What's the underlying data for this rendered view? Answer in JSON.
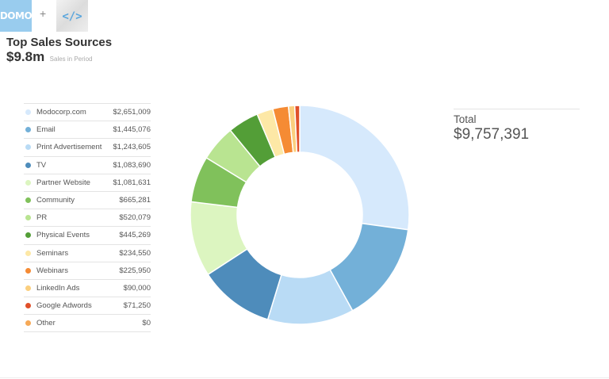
{
  "header": {
    "brand_logo_text": "DOMO",
    "plus": "+",
    "code_logo_text": "</>",
    "title": "Top Sales Sources",
    "summary_value": "$9.8m",
    "summary_label": "Sales in Period"
  },
  "total": {
    "label": "Total",
    "value": "$9,757,391"
  },
  "chart_data": {
    "type": "pie",
    "variant": "donut",
    "title": "Top Sales Sources",
    "total": 9757391,
    "legend_position": "left",
    "series": [
      {
        "name": "Modocorp.com",
        "value": 2651009,
        "display": "$2,651,009",
        "color": "#d6e9fc"
      },
      {
        "name": "Email",
        "value": 1445076,
        "display": "$1,445,076",
        "color": "#73b0d8"
      },
      {
        "name": "Print Advertisement",
        "value": 1243605,
        "display": "$1,243,605",
        "color": "#b9dbf5"
      },
      {
        "name": "TV",
        "value": 1083690,
        "display": "$1,083,690",
        "color": "#4e8cbb"
      },
      {
        "name": "Partner Website",
        "value": 1081631,
        "display": "$1,081,631",
        "color": "#dcf5c0"
      },
      {
        "name": "Community",
        "value": 665281,
        "display": "$665,281",
        "color": "#80c15b"
      },
      {
        "name": "PR",
        "value": 520079,
        "display": "$520,079",
        "color": "#b9e491"
      },
      {
        "name": "Physical Events",
        "value": 445269,
        "display": "$445,269",
        "color": "#539e37"
      },
      {
        "name": "Seminars",
        "value": 234550,
        "display": "$234,550",
        "color": "#fde8a6"
      },
      {
        "name": "Webinars",
        "value": 225950,
        "display": "$225,950",
        "color": "#f58b34"
      },
      {
        "name": "LinkedIn Ads",
        "value": 90000,
        "display": "$90,000",
        "color": "#fbcf7e"
      },
      {
        "name": "Google Adwords",
        "value": 71250,
        "display": "$71,250",
        "color": "#e0502a"
      },
      {
        "name": "Other",
        "value": 0,
        "display": "$0",
        "color": "#f6a957"
      }
    ]
  }
}
